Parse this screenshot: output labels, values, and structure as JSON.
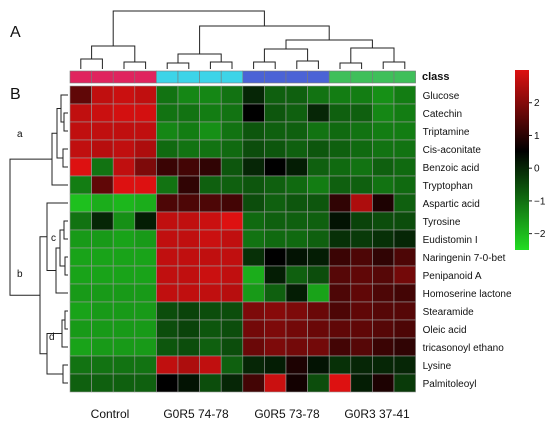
{
  "panel_labels": {
    "a_top": "A",
    "b_left": "B"
  },
  "class_label": "class",
  "row_cluster_labels": [
    "a",
    "b",
    "c",
    "d"
  ],
  "colors": {
    "low": "#22dd22",
    "mid": "#000000",
    "high": "#dd1111",
    "class_control": "#e0245e",
    "class_g0r5_74": "#3dd4e8",
    "class_g0r5_73": "#4b63d6",
    "class_g0r3": "#3fbf5a",
    "grid": "#9a9a9a"
  },
  "chart_data": {
    "type": "heatmap",
    "title": "",
    "xlabel": "",
    "ylabel": "",
    "groups": [
      "Control",
      "G0R5 74-78",
      "G0R5 73-78",
      "G0R3 37-41"
    ],
    "columns_per_group": 4,
    "rows": [
      "Glucose",
      "Catechin",
      "Triptamine",
      "Cis-aconitate",
      "Benzoic acid",
      "Tryptophan",
      "Aspartic acid",
      "Tyrosine",
      "Eudistomin I",
      "Naringenin 7-0-bet",
      "Penipanoid A",
      "Homoserine lactone",
      "Stearamide",
      "Oleic acid",
      "tricasonoyl ethano",
      "Lysine",
      "Palmitoleoyl"
    ],
    "values": [
      [
        1.0,
        2.0,
        2.1,
        2.0,
        -1.2,
        -1.4,
        -1.4,
        -1.2,
        -0.4,
        -1.0,
        -1.0,
        -1.2,
        -1.3,
        -1.3,
        -1.5,
        -1.3
      ],
      [
        2.0,
        2.1,
        2.2,
        2.2,
        -1.2,
        -1.2,
        -1.3,
        -1.2,
        0.0,
        -0.9,
        -1.0,
        -0.4,
        -1.0,
        -1.0,
        -1.4,
        -1.3
      ],
      [
        2.0,
        2.0,
        2.0,
        2.0,
        -1.4,
        -1.3,
        -1.5,
        -1.2,
        -0.9,
        -1.0,
        -1.0,
        -1.2,
        -1.1,
        -1.2,
        -1.3,
        -1.3
      ],
      [
        2.0,
        1.9,
        2.0,
        1.8,
        -1.1,
        -1.2,
        -1.2,
        -1.1,
        -0.8,
        -0.9,
        -1.0,
        -0.9,
        -1.0,
        -1.1,
        -1.2,
        -1.2
      ],
      [
        2.6,
        -1.2,
        2.0,
        1.3,
        0.6,
        0.7,
        0.5,
        -0.9,
        -0.4,
        0.0,
        -0.3,
        -1.0,
        -1.1,
        -1.2,
        -1.0,
        -1.1
      ],
      [
        -1.3,
        1.0,
        2.6,
        2.6,
        -1.2,
        0.5,
        -1.0,
        -1.0,
        -0.9,
        -1.0,
        -1.1,
        -1.3,
        -1.0,
        -1.0,
        -1.2,
        -1.1
      ],
      [
        -2.0,
        -1.8,
        -1.9,
        -1.8,
        0.8,
        0.8,
        0.8,
        0.7,
        -0.8,
        -1.0,
        -0.9,
        -0.9,
        0.5,
        1.8,
        0.3,
        -1.0
      ],
      [
        -1.2,
        -0.4,
        -1.5,
        -0.3,
        2.0,
        2.0,
        2.1,
        2.6,
        -1.1,
        -1.0,
        -1.0,
        -1.0,
        -0.2,
        -0.7,
        -0.8,
        -0.8
      ],
      [
        -1.6,
        -1.6,
        -1.7,
        -1.6,
        2.0,
        2.0,
        2.1,
        2.0,
        -1.2,
        -1.1,
        -1.1,
        -1.0,
        -0.5,
        -0.6,
        -0.5,
        -0.4
      ],
      [
        -1.7,
        -1.7,
        -1.7,
        -1.7,
        2.0,
        2.0,
        2.0,
        2.0,
        -0.5,
        0.0,
        -0.2,
        -0.3,
        0.6,
        0.8,
        0.5,
        0.8
      ],
      [
        -1.7,
        -1.7,
        -1.7,
        -1.7,
        2.0,
        2.0,
        2.1,
        2.0,
        -1.8,
        -0.3,
        -1.0,
        -0.8,
        0.9,
        1.0,
        0.9,
        1.2
      ],
      [
        -1.6,
        -1.6,
        -1.6,
        -1.6,
        2.0,
        2.0,
        2.0,
        1.9,
        -1.6,
        -1.0,
        -0.3,
        -1.7,
        0.8,
        1.0,
        0.8,
        0.7
      ],
      [
        -1.7,
        -1.6,
        -1.6,
        -1.6,
        -0.8,
        -0.7,
        -0.8,
        -0.8,
        1.3,
        1.4,
        1.3,
        1.1,
        0.8,
        1.0,
        0.9,
        0.9
      ],
      [
        -1.6,
        -1.6,
        -1.6,
        -1.6,
        -0.8,
        -0.7,
        -0.9,
        -0.8,
        1.2,
        1.3,
        1.2,
        1.1,
        1.0,
        1.0,
        0.9,
        0.8
      ],
      [
        -1.7,
        -1.6,
        -1.6,
        -1.6,
        -0.9,
        -0.8,
        -1.0,
        -0.8,
        1.1,
        1.3,
        1.2,
        1.2,
        0.7,
        0.9,
        0.6,
        0.5
      ],
      [
        -1.2,
        -1.2,
        -1.2,
        -1.2,
        2.0,
        1.8,
        2.0,
        -1.0,
        -0.4,
        -0.3,
        0.3,
        -0.2,
        -0.5,
        -0.4,
        -0.4,
        -0.4
      ],
      [
        -1.0,
        -1.0,
        -1.0,
        -1.0,
        0.0,
        -0.2,
        -0.8,
        -0.4,
        0.7,
        2.1,
        0.2,
        -0.8,
        2.7,
        -0.3,
        0.3,
        -0.6
      ]
    ],
    "legend": {
      "ticks": [
        2,
        1,
        0,
        -1,
        -2
      ],
      "range": [
        -2.5,
        3
      ]
    }
  }
}
